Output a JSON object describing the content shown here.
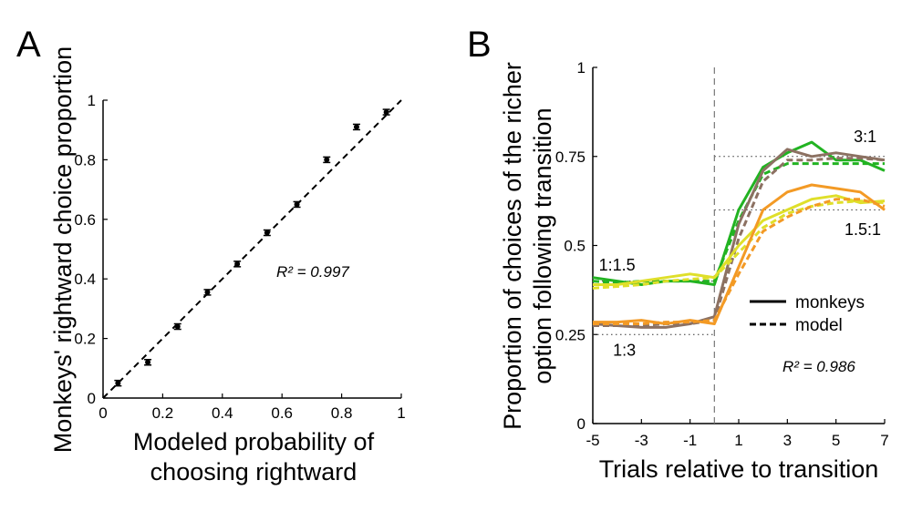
{
  "chart_data": [
    {
      "panel": "A",
      "type": "scatter",
      "xlabel": [
        "Modeled probability of",
        "choosing rightward"
      ],
      "ylabel": "Monkeys' rightward choice proportion",
      "xlim": [
        0,
        1
      ],
      "ylim": [
        0,
        1
      ],
      "xticks": [
        "0",
        "0.2",
        "0.4",
        "0.6",
        "0.8",
        "1"
      ],
      "yticks": [
        "0",
        "0.2",
        "0.4",
        "0.6",
        "0.8",
        "1"
      ],
      "annotation": "R² = 0.997",
      "points": [
        {
          "x": 0.05,
          "y": 0.05,
          "err": 0.005
        },
        {
          "x": 0.15,
          "y": 0.12,
          "err": 0.006
        },
        {
          "x": 0.25,
          "y": 0.24,
          "err": 0.007
        },
        {
          "x": 0.35,
          "y": 0.355,
          "err": 0.007
        },
        {
          "x": 0.45,
          "y": 0.45,
          "err": 0.006
        },
        {
          "x": 0.55,
          "y": 0.555,
          "err": 0.005
        },
        {
          "x": 0.65,
          "y": 0.65,
          "err": 0.005
        },
        {
          "x": 0.75,
          "y": 0.8,
          "err": 0.007
        },
        {
          "x": 0.85,
          "y": 0.91,
          "err": 0.006
        },
        {
          "x": 0.95,
          "y": 0.96,
          "err": 0.005
        }
      ],
      "reference_line": {
        "style": "dashed",
        "from": [
          0,
          0
        ],
        "to": [
          1,
          1
        ]
      },
      "grid": false,
      "colors": {
        "points": "#000000"
      }
    },
    {
      "panel": "B",
      "type": "line",
      "xlabel": "Trials relative to transition",
      "ylabel": [
        "Proportion of choices of the richer",
        "option following transition"
      ],
      "xlim": [
        -5,
        7
      ],
      "ylim": [
        0,
        1
      ],
      "xticks": [
        "-5",
        "-3",
        "-1",
        "1",
        "3",
        "5",
        "7"
      ],
      "yticks": [
        "0",
        "0.25",
        "0.5",
        "0.75",
        "1"
      ],
      "x": [
        -5,
        -4,
        -3,
        -2,
        -1,
        0,
        1,
        2,
        3,
        4,
        5,
        6,
        7
      ],
      "transition_line": {
        "x": 0,
        "style": "dashed"
      },
      "reference_levels": [
        {
          "y": 0.75,
          "from": 0,
          "to": 7
        },
        {
          "y": 0.6,
          "from": 0,
          "to": 7
        },
        {
          "y": 0.4,
          "from": -5,
          "to": 0
        },
        {
          "y": 0.25,
          "from": -5,
          "to": 0
        }
      ],
      "labels": [
        {
          "text": "1:1.5",
          "x": -4,
          "y": 0.43
        },
        {
          "text": "1:3",
          "x": -3.7,
          "y": 0.19
        },
        {
          "text": "3:1",
          "x": 6.2,
          "y": 0.79
        },
        {
          "text": "1.5:1",
          "x": 6.1,
          "y": 0.53
        }
      ],
      "annotation": "R² = 0.986",
      "legend": {
        "placement": "center-right",
        "entries": [
          {
            "label": "monkeys",
            "style": "solid"
          },
          {
            "label": "model",
            "style": "dashed"
          }
        ]
      },
      "series": [
        {
          "color": "#22b322",
          "style": "solid",
          "values": [
            0.41,
            0.4,
            0.39,
            0.4,
            0.4,
            0.39,
            0.6,
            0.72,
            0.76,
            0.79,
            0.74,
            0.74,
            0.71
          ]
        },
        {
          "color": "#22b322",
          "style": "dashed",
          "values": [
            0.4,
            0.395,
            0.4,
            0.4,
            0.4,
            0.4,
            0.57,
            0.7,
            0.73,
            0.73,
            0.73,
            0.73,
            0.73
          ]
        },
        {
          "color": "#8c7162",
          "style": "solid",
          "values": [
            0.28,
            0.275,
            0.27,
            0.27,
            0.28,
            0.3,
            0.56,
            0.71,
            0.77,
            0.75,
            0.76,
            0.75,
            0.74
          ]
        },
        {
          "color": "#8c7162",
          "style": "dashed",
          "values": [
            0.275,
            0.275,
            0.275,
            0.28,
            0.28,
            0.29,
            0.52,
            0.68,
            0.74,
            0.74,
            0.745,
            0.745,
            0.74
          ]
        },
        {
          "color": "#dfdf2a",
          "style": "solid",
          "values": [
            0.39,
            0.39,
            0.4,
            0.41,
            0.42,
            0.41,
            0.5,
            0.57,
            0.6,
            0.63,
            0.64,
            0.62,
            0.625
          ]
        },
        {
          "color": "#dfdf2a",
          "style": "dashed",
          "values": [
            0.38,
            0.385,
            0.39,
            0.4,
            0.405,
            0.41,
            0.48,
            0.55,
            0.59,
            0.61,
            0.62,
            0.625,
            0.62
          ]
        },
        {
          "color": "#f39a25",
          "style": "solid",
          "values": [
            0.285,
            0.285,
            0.29,
            0.28,
            0.29,
            0.28,
            0.44,
            0.6,
            0.65,
            0.67,
            0.66,
            0.65,
            0.6
          ]
        },
        {
          "color": "#f39a25",
          "style": "dashed",
          "values": [
            0.28,
            0.28,
            0.28,
            0.285,
            0.285,
            0.29,
            0.42,
            0.54,
            0.58,
            0.61,
            0.63,
            0.63,
            0.61
          ]
        }
      ],
      "grid": false
    }
  ]
}
